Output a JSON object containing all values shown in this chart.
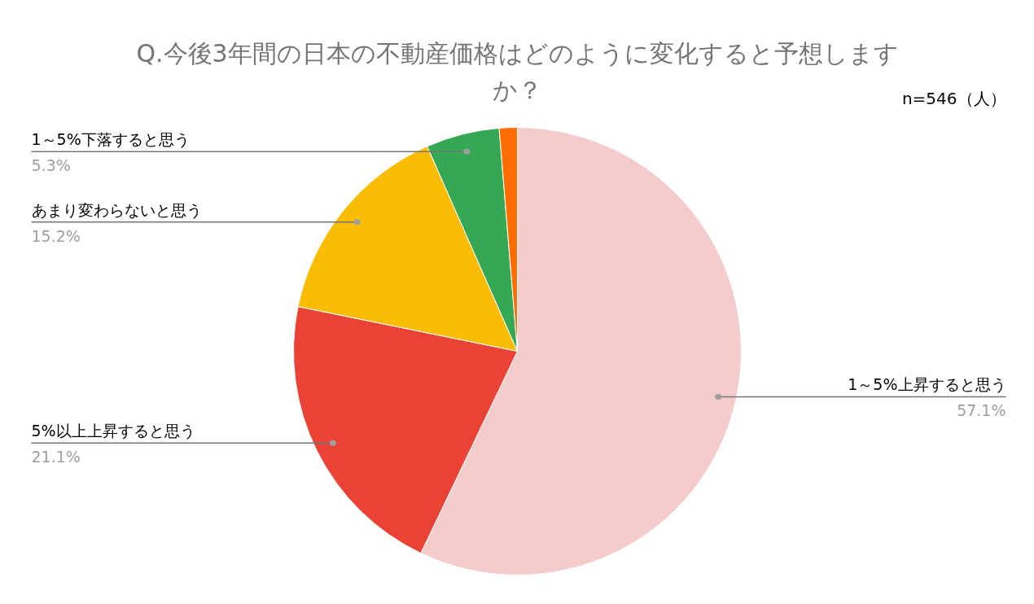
{
  "chart_data": {
    "type": "pie",
    "title": "Q.今後3年間の日本の不動産価格はどのように変化すると予想しますか？",
    "categories": [
      "1～5%上昇すると思う",
      "5%以上上昇すると思う",
      "あまり変わらないと思う",
      "1～5%下落すると思う",
      null
    ],
    "values": [
      57.1,
      21.1,
      15.2,
      5.3,
      1.3
    ],
    "value_labels": [
      "57.1%",
      "21.1%",
      "15.2%",
      "5.3%",
      null
    ],
    "colors": [
      "#f4cccc",
      "#ea4335",
      "#fbbc04",
      "#34a853",
      "#ff6d01"
    ],
    "annotations": [
      "n=546（人）"
    ]
  }
}
